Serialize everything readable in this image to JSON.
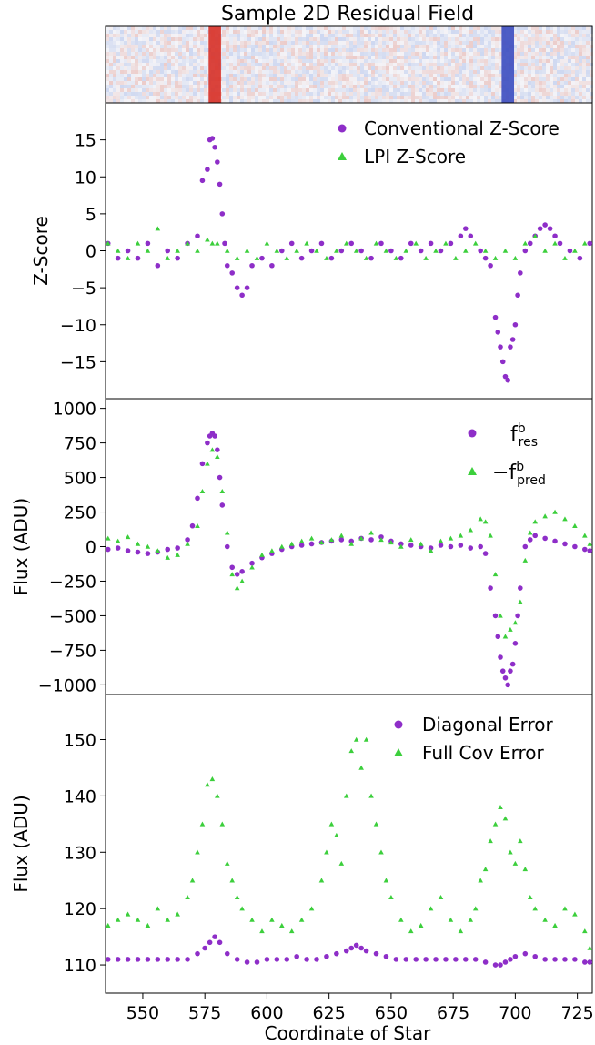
{
  "figure": {
    "shared_xlabel": "Coordinate of Star"
  },
  "chart_data": [
    {
      "type": "heatmap",
      "title": "Sample 2D Residual Field",
      "x_range": [
        535,
        731
      ],
      "bands": [
        {
          "x": 579,
          "width": 5,
          "value": 1.0
        },
        {
          "x": 697,
          "width": 5,
          "value": -1.0
        }
      ],
      "colors": {
        "positive": "#d73027",
        "negative": "#3b4cc0",
        "neutral": "#f4f4f8"
      }
    },
    {
      "type": "scatter",
      "xlim": [
        535,
        731
      ],
      "ylim": [
        -20,
        20
      ],
      "yticks": [
        15,
        10,
        5,
        0,
        -5,
        -10,
        -15
      ],
      "xticks": [
        550,
        575,
        600,
        625,
        650,
        675,
        700,
        725
      ],
      "ylabel": "Z-Score",
      "legend": "top-right",
      "series": [
        {
          "name": "Conventional Z-Score",
          "marker": "circle",
          "color": "#8e2ec8",
          "x": [
            536,
            540,
            544,
            548,
            552,
            556,
            560,
            564,
            568,
            572,
            574,
            576,
            577,
            578,
            579,
            580,
            581,
            582,
            583,
            584,
            586,
            588,
            590,
            592,
            594,
            598,
            602,
            606,
            610,
            614,
            618,
            622,
            626,
            630,
            634,
            638,
            642,
            646,
            650,
            654,
            658,
            662,
            666,
            670,
            674,
            678,
            680,
            682,
            686,
            688,
            690,
            692,
            693,
            694,
            695,
            696,
            697,
            698,
            699,
            700,
            701,
            702,
            704,
            706,
            708,
            710,
            712,
            714,
            716,
            718,
            722,
            726,
            730
          ],
          "y": [
            1,
            -1,
            0,
            -1,
            1,
            -2,
            0,
            -1,
            1,
            2,
            9.5,
            11,
            15,
            15.2,
            14,
            12,
            9,
            5,
            1,
            -2,
            -3,
            -5,
            -6,
            -5,
            -2,
            -1,
            -2,
            0,
            1,
            -1,
            0,
            1,
            -1,
            0,
            1,
            0,
            -1,
            1,
            0,
            -1,
            1,
            0,
            1,
            0,
            1,
            2,
            3,
            2,
            0,
            -1,
            -2,
            -9,
            -11,
            -13,
            -15,
            -17,
            -17.5,
            -13,
            -12,
            -10,
            -6,
            -3,
            0,
            1,
            2,
            3,
            3.5,
            3,
            2,
            1,
            0,
            -1,
            1
          ]
        },
        {
          "name": "LPI Z-Score",
          "marker": "triangle",
          "color": "#3ccf3c",
          "x": [
            536,
            540,
            544,
            548,
            552,
            556,
            560,
            564,
            568,
            572,
            576,
            578,
            580,
            584,
            588,
            592,
            596,
            600,
            604,
            608,
            612,
            616,
            620,
            624,
            628,
            632,
            636,
            640,
            644,
            648,
            652,
            656,
            660,
            664,
            668,
            672,
            676,
            680,
            684,
            688,
            692,
            696,
            700,
            704,
            708,
            712,
            716,
            720,
            724,
            728
          ],
          "y": [
            1,
            0,
            -1,
            1,
            0,
            3,
            -1,
            0,
            1,
            0,
            1.5,
            1,
            1,
            0,
            -1,
            0,
            -1,
            1,
            0,
            -1,
            0,
            1,
            0,
            -1,
            0,
            1,
            0,
            -1,
            1,
            0,
            -1,
            0,
            1,
            -1,
            0,
            1,
            -1,
            0,
            1,
            0,
            -1,
            0,
            -1,
            1,
            2,
            0,
            1,
            -1,
            0,
            1
          ]
        }
      ]
    },
    {
      "type": "scatter",
      "xlim": [
        535,
        731
      ],
      "ylim": [
        -1070,
        1070
      ],
      "yticks": [
        1000,
        750,
        500,
        250,
        0,
        -250,
        -500,
        -750,
        -1000
      ],
      "xticks": [
        550,
        575,
        600,
        625,
        650,
        675,
        700,
        725
      ],
      "ylabel": "Flux (ADU)",
      "legend": "top-right",
      "series": [
        {
          "name": "f_res^b",
          "marker": "circle",
          "color": "#8e2ec8",
          "x": [
            536,
            540,
            544,
            548,
            552,
            556,
            560,
            564,
            568,
            570,
            572,
            574,
            576,
            577,
            578,
            579,
            580,
            581,
            582,
            584,
            586,
            588,
            590,
            594,
            598,
            602,
            606,
            610,
            614,
            618,
            622,
            626,
            630,
            634,
            638,
            642,
            646,
            650,
            654,
            658,
            662,
            666,
            670,
            674,
            678,
            682,
            686,
            688,
            690,
            692,
            693,
            694,
            695,
            696,
            697,
            698,
            699,
            700,
            701,
            702,
            704,
            706,
            708,
            712,
            716,
            720,
            724,
            728,
            730
          ],
          "y": [
            -20,
            -10,
            -30,
            -40,
            -50,
            -40,
            -20,
            -10,
            50,
            150,
            350,
            600,
            750,
            800,
            820,
            800,
            700,
            500,
            300,
            0,
            -150,
            -200,
            -180,
            -120,
            -80,
            -50,
            -20,
            0,
            10,
            20,
            30,
            40,
            50,
            40,
            60,
            50,
            70,
            40,
            20,
            10,
            0,
            -10,
            10,
            0,
            10,
            -10,
            0,
            -50,
            -300,
            -500,
            -650,
            -800,
            -900,
            -950,
            -1000,
            -900,
            -850,
            -700,
            -500,
            -300,
            0,
            50,
            80,
            60,
            40,
            20,
            0,
            -20,
            -30
          ]
        },
        {
          "name": "−f_pred^b",
          "marker": "triangle",
          "color": "#3ccf3c",
          "x": [
            536,
            540,
            544,
            548,
            552,
            556,
            560,
            564,
            568,
            572,
            574,
            576,
            578,
            580,
            582,
            584,
            586,
            588,
            590,
            594,
            598,
            602,
            606,
            610,
            614,
            618,
            622,
            626,
            630,
            634,
            638,
            642,
            646,
            650,
            654,
            658,
            662,
            666,
            670,
            674,
            678,
            682,
            686,
            688,
            690,
            692,
            694,
            696,
            698,
            700,
            702,
            704,
            706,
            708,
            712,
            716,
            720,
            724,
            728,
            730
          ],
          "y": [
            60,
            40,
            70,
            20,
            0,
            -30,
            -80,
            -60,
            20,
            150,
            400,
            600,
            700,
            650,
            400,
            100,
            -200,
            -300,
            -250,
            -150,
            -60,
            -30,
            0,
            20,
            40,
            60,
            30,
            50,
            80,
            20,
            60,
            100,
            50,
            30,
            0,
            50,
            20,
            -30,
            40,
            60,
            80,
            120,
            200,
            180,
            80,
            -200,
            -500,
            -650,
            -600,
            -550,
            -400,
            -100,
            100,
            180,
            220,
            250,
            200,
            150,
            80,
            20
          ]
        }
      ]
    },
    {
      "type": "scatter",
      "xlim": [
        535,
        731
      ],
      "ylim": [
        105,
        158
      ],
      "yticks": [
        150,
        140,
        130,
        120,
        110
      ],
      "xticks": [
        550,
        575,
        600,
        625,
        650,
        675,
        700,
        725
      ],
      "xticklabels": [
        "550",
        "575",
        "600",
        "625",
        "650",
        "675",
        "700",
        "725"
      ],
      "xlabel": "Coordinate of Star",
      "ylabel": "Flux (ADU)",
      "legend": "top-right",
      "series": [
        {
          "name": "Diagonal Error",
          "marker": "circle",
          "color": "#8e2ec8",
          "x": [
            536,
            540,
            544,
            548,
            552,
            556,
            560,
            564,
            568,
            572,
            575,
            577,
            579,
            581,
            584,
            588,
            592,
            596,
            600,
            604,
            608,
            612,
            616,
            620,
            624,
            628,
            632,
            634,
            636,
            638,
            640,
            644,
            648,
            652,
            656,
            660,
            664,
            668,
            672,
            676,
            680,
            684,
            688,
            692,
            694,
            696,
            698,
            700,
            704,
            708,
            712,
            716,
            720,
            724,
            728,
            730
          ],
          "y": [
            111,
            111,
            111,
            111,
            111,
            111,
            111,
            111,
            111,
            112,
            113,
            114,
            115,
            114,
            112,
            111,
            110.5,
            110.5,
            111,
            111,
            111,
            111.5,
            111,
            111,
            111.5,
            112,
            112.5,
            113,
            113.5,
            113,
            112.5,
            112,
            111.5,
            111,
            111,
            111,
            111,
            111,
            111,
            111,
            111,
            111,
            110.5,
            110,
            110,
            110.5,
            111,
            111.5,
            112,
            111.5,
            111,
            111,
            111,
            111,
            110.5,
            110.5
          ]
        },
        {
          "name": "Full Cov Error",
          "marker": "triangle",
          "color": "#3ccf3c",
          "x": [
            536,
            540,
            544,
            548,
            552,
            556,
            560,
            564,
            568,
            570,
            572,
            574,
            576,
            578,
            580,
            582,
            584,
            586,
            588,
            590,
            594,
            598,
            602,
            606,
            610,
            614,
            618,
            622,
            624,
            626,
            628,
            630,
            632,
            634,
            636,
            638,
            640,
            642,
            644,
            646,
            648,
            650,
            654,
            658,
            662,
            666,
            670,
            674,
            678,
            682,
            684,
            686,
            688,
            690,
            692,
            694,
            696,
            698,
            700,
            702,
            704,
            706,
            708,
            712,
            716,
            720,
            724,
            728,
            730
          ],
          "y": [
            117,
            118,
            119,
            118,
            117,
            120,
            118,
            119,
            122,
            125,
            130,
            135,
            142,
            143,
            140,
            135,
            128,
            125,
            122,
            120,
            118,
            116,
            118,
            117,
            116,
            118,
            120,
            125,
            130,
            135,
            133,
            128,
            140,
            148,
            150,
            145,
            150,
            140,
            135,
            130,
            125,
            122,
            118,
            116,
            117,
            120,
            122,
            118,
            116,
            118,
            120,
            125,
            127,
            132,
            135,
            138,
            136,
            130,
            128,
            132,
            127,
            122,
            120,
            118,
            117,
            120,
            119,
            116,
            113
          ]
        }
      ]
    }
  ]
}
